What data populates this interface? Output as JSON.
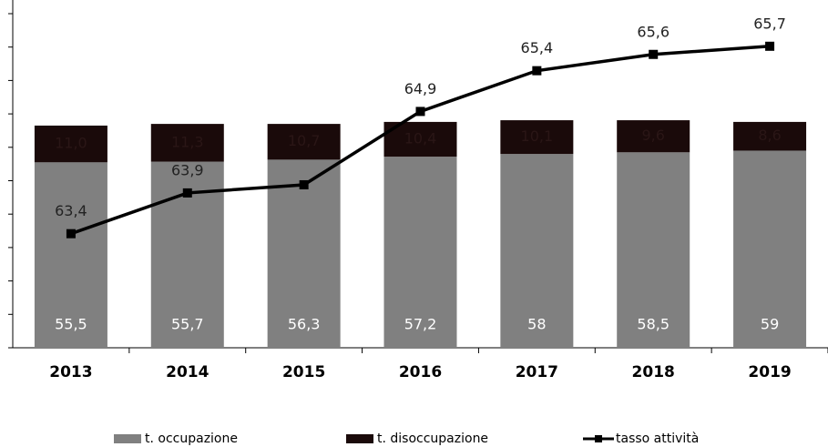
{
  "chart_data": {
    "type": "bar-line",
    "categories": [
      "2013",
      "2014",
      "2015",
      "2016",
      "2017",
      "2018",
      "2019"
    ],
    "ylim": [
      0,
      100
    ],
    "yticks": [
      0,
      10,
      20,
      30,
      40,
      50,
      60,
      70,
      80,
      90,
      100
    ],
    "y2lim": [
      62,
      66.1
    ],
    "series": [
      {
        "name": "t. occupazione",
        "color": "#808080",
        "type": "bar",
        "values": [
          55.5,
          55.7,
          56.3,
          57.2,
          58,
          58.5,
          59
        ],
        "value_labels": [
          "55,5",
          "55,7",
          "56,3",
          "57,2",
          "58",
          "58,5",
          "59"
        ]
      },
      {
        "name": "t. disoccupazione",
        "color": "#1a0a0a",
        "type": "bar",
        "values": [
          11,
          11.3,
          10.7,
          10.4,
          10.1,
          9.6,
          8.6
        ],
        "value_labels": [
          "11,0",
          "11,3",
          "10,7",
          "10,4",
          "10,1",
          "9,6",
          "8,6"
        ]
      },
      {
        "name": "tasso attività",
        "color": "#000000",
        "type": "line",
        "axis": "y2",
        "values": [
          63.4,
          63.9,
          64.0,
          64.9,
          65.4,
          65.6,
          65.7
        ],
        "value_labels": [
          "63,4",
          "63,9",
          null,
          "64,9",
          "65,4",
          "65,6",
          "65,7"
        ]
      }
    ]
  }
}
